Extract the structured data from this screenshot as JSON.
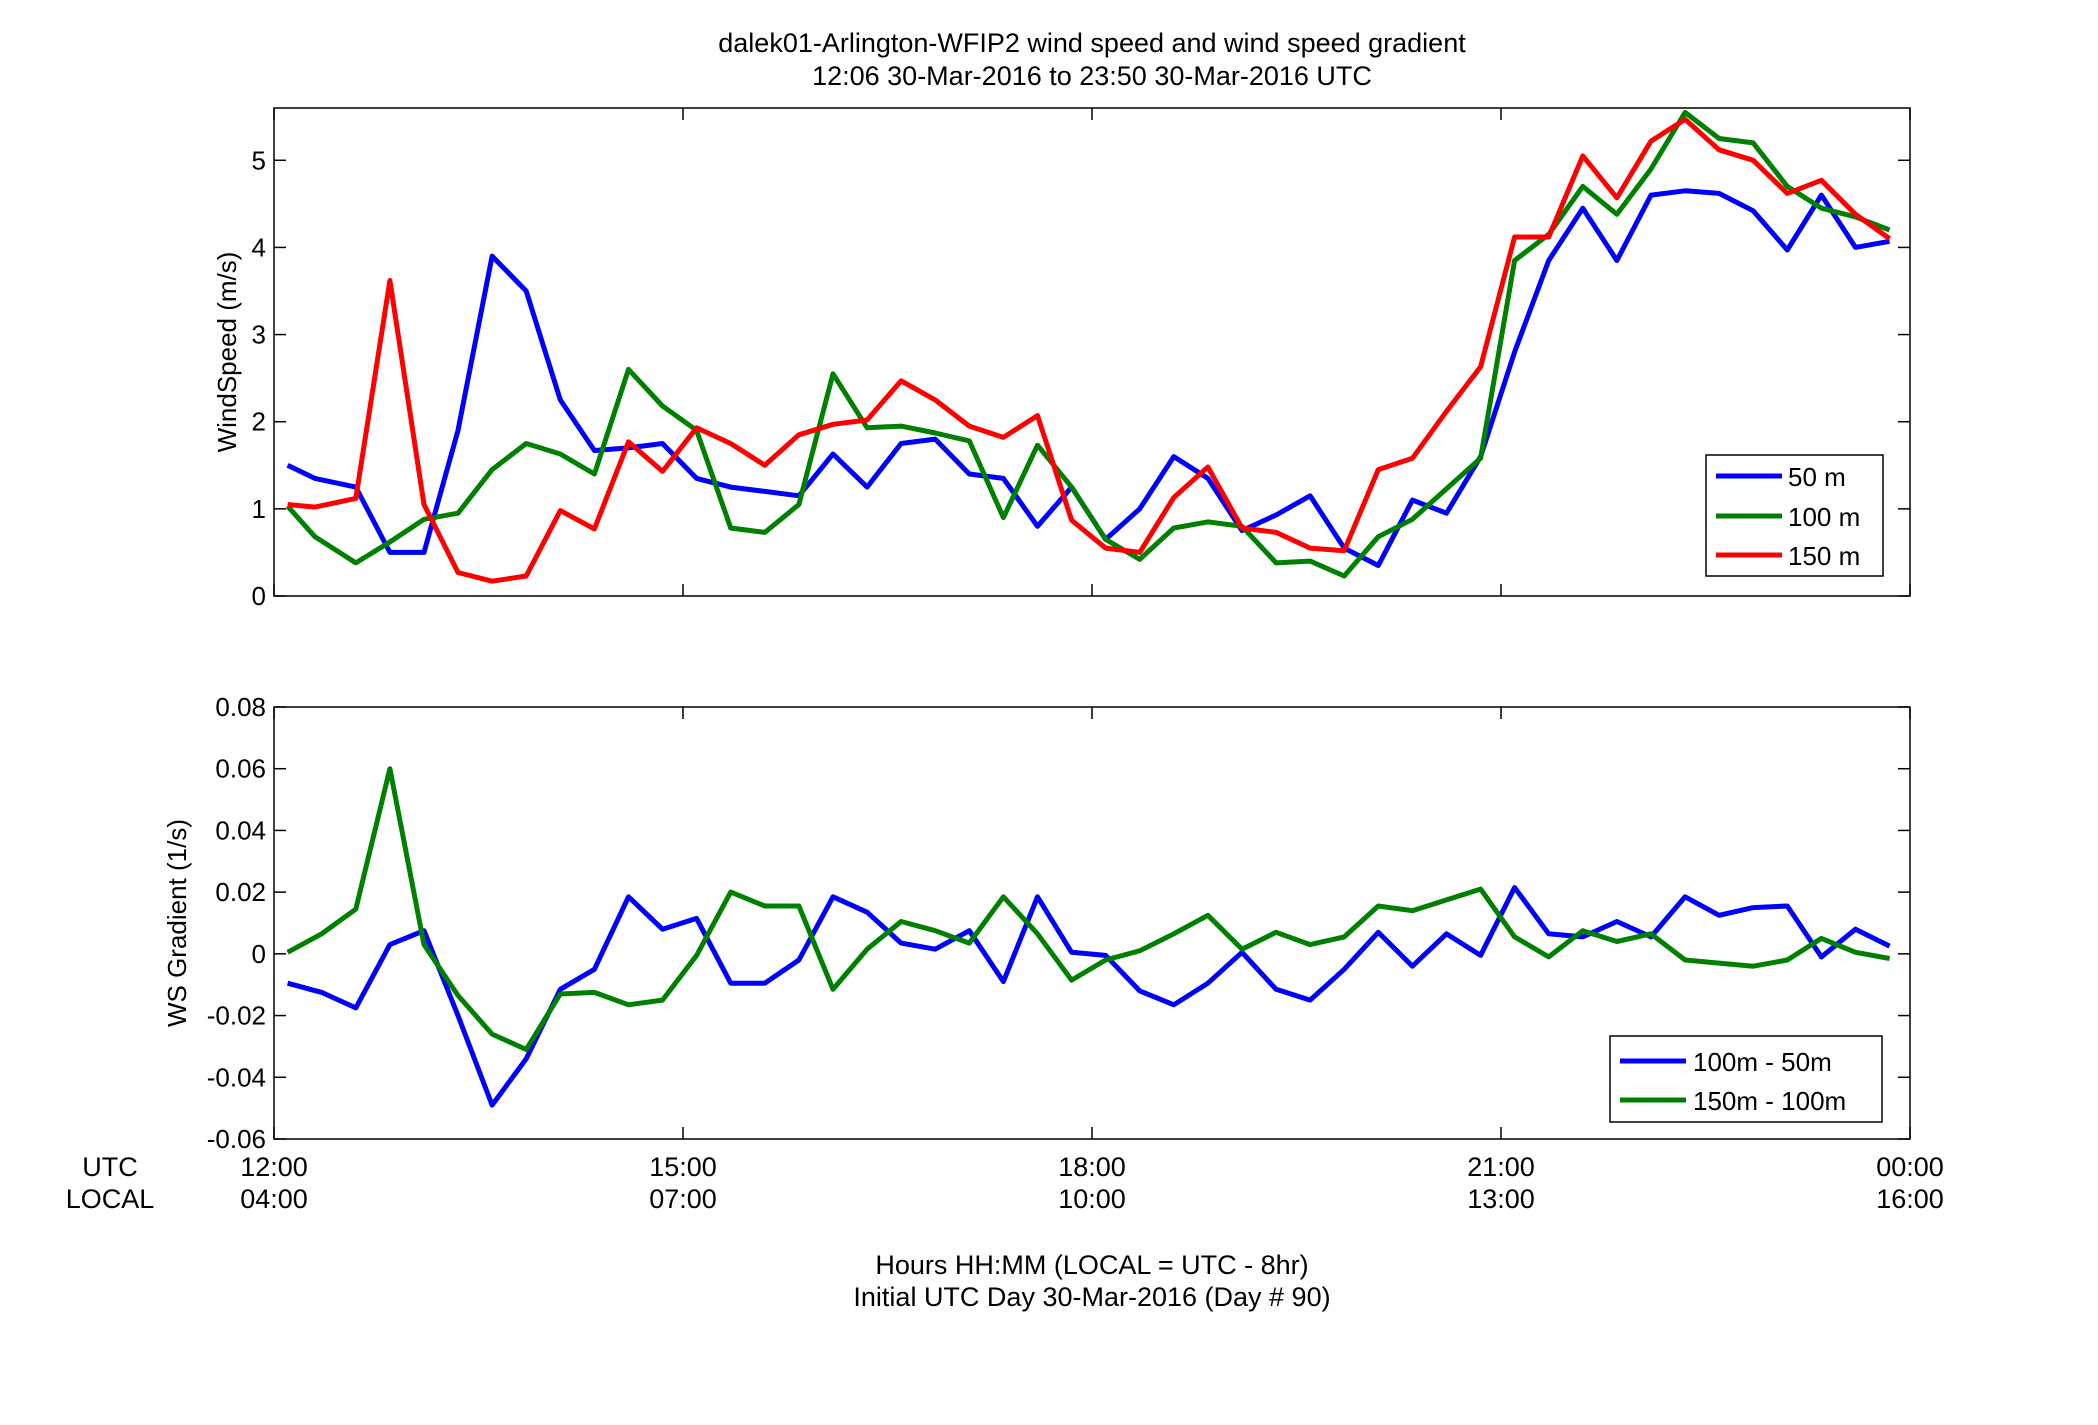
{
  "figure": {
    "title_line1": "dalek01-Arlington-WFIP2  wind speed and wind speed gradient",
    "title_line2": "12:06 30-Mar-2016 to 23:50 30-Mar-2016  UTC",
    "xlabel_line1": "Hours HH:MM  (LOCAL = UTC - 8hr)",
    "xlabel_line2": "Initial UTC Day 30-Mar-2016 (Day # 90)",
    "utc_row_label": "UTC",
    "local_row_label": "LOCAL"
  },
  "chart_data": [
    {
      "type": "line",
      "title": "",
      "ylabel": "WindSpeed (m/s)",
      "xlim": [
        12,
        24
      ],
      "ylim": [
        0,
        5.6
      ],
      "yticks": [
        0,
        1,
        2,
        3,
        4,
        5
      ],
      "ytick_labels": [
        "0",
        "1",
        "2",
        "3",
        "4",
        "5"
      ],
      "xticks": [
        12,
        15,
        18,
        21,
        24
      ],
      "grid": false,
      "legend_position": "lower-right",
      "x": [
        12.1,
        12.3,
        12.6,
        12.85,
        13.1,
        13.35,
        13.6,
        13.85,
        14.1,
        14.35,
        14.6,
        14.85,
        15.1,
        15.35,
        15.6,
        15.85,
        16.1,
        16.35,
        16.6,
        16.85,
        17.1,
        17.35,
        17.6,
        17.85,
        18.1,
        18.35,
        18.6,
        18.85,
        19.1,
        19.35,
        19.6,
        19.85,
        20.1,
        20.35,
        20.6,
        20.85,
        21.1,
        21.35,
        21.6,
        21.85,
        22.1,
        22.35,
        22.6,
        22.85,
        23.1,
        23.35,
        23.6,
        23.85
      ],
      "series": [
        {
          "name": "50 m",
          "color": "#0000ff",
          "values": [
            1.5,
            1.35,
            1.25,
            0.5,
            0.5,
            1.9,
            3.9,
            3.5,
            2.25,
            1.67,
            1.7,
            1.75,
            1.35,
            1.25,
            1.2,
            1.15,
            1.63,
            1.25,
            1.75,
            1.8,
            1.4,
            1.35,
            0.8,
            1.25,
            0.65,
            1.0,
            1.6,
            1.35,
            0.75,
            0.93,
            1.15,
            0.55,
            0.35,
            1.1,
            0.95,
            1.6,
            2.8,
            3.85,
            4.45,
            3.85,
            4.6,
            4.65,
            4.62,
            4.42,
            3.97,
            4.6,
            4.0,
            4.07
          ]
        },
        {
          "name": "100 m",
          "color": "#008000",
          "values": [
            1.03,
            0.68,
            0.38,
            0.62,
            0.88,
            0.95,
            1.45,
            1.75,
            1.63,
            1.4,
            2.6,
            2.18,
            1.9,
            0.78,
            0.73,
            1.05,
            2.55,
            1.93,
            1.95,
            1.87,
            1.78,
            0.9,
            1.73,
            1.25,
            0.65,
            0.42,
            0.78,
            0.85,
            0.8,
            0.38,
            0.4,
            0.23,
            0.68,
            0.88,
            1.23,
            1.58,
            3.85,
            4.15,
            4.7,
            4.38,
            4.9,
            5.55,
            5.25,
            5.2,
            4.7,
            4.45,
            4.35,
            4.2
          ]
        },
        {
          "name": "150 m",
          "color": "#ff0000",
          "values": [
            1.05,
            1.02,
            1.12,
            3.62,
            1.05,
            0.27,
            0.17,
            0.23,
            0.98,
            0.77,
            1.77,
            1.43,
            1.93,
            1.75,
            1.5,
            1.85,
            1.97,
            2.02,
            2.47,
            2.25,
            1.95,
            1.82,
            2.07,
            0.87,
            0.55,
            0.5,
            1.13,
            1.48,
            0.78,
            0.73,
            0.55,
            0.52,
            1.45,
            1.58,
            2.12,
            2.63,
            4.12,
            4.12,
            5.05,
            4.57,
            5.22,
            5.47,
            5.12,
            5.0,
            4.62,
            4.77,
            4.38,
            4.1
          ]
        }
      ]
    },
    {
      "type": "line",
      "title": "",
      "ylabel": "WS Gradient (1/s)",
      "xlim": [
        12,
        24
      ],
      "ylim": [
        -0.06,
        0.08
      ],
      "yticks": [
        -0.06,
        -0.04,
        -0.02,
        0,
        0.02,
        0.04,
        0.06,
        0.08
      ],
      "ytick_labels": [
        "-0.06",
        "-0.04",
        "-0.02",
        "0",
        "0.02",
        "0.04",
        "0.06",
        "0.08"
      ],
      "xticks": [
        12,
        15,
        18,
        21,
        24
      ],
      "xtick_labels_utc": [
        "12:00",
        "15:00",
        "18:00",
        "21:00",
        "00:00"
      ],
      "xtick_labels_local": [
        "04:00",
        "07:00",
        "10:00",
        "13:00",
        "16:00"
      ],
      "grid": false,
      "legend_position": "lower-right",
      "x": [
        12.1,
        12.35,
        12.6,
        12.85,
        13.1,
        13.35,
        13.6,
        13.85,
        14.1,
        14.35,
        14.6,
        14.85,
        15.1,
        15.35,
        15.6,
        15.85,
        16.1,
        16.35,
        16.6,
        16.85,
        17.1,
        17.35,
        17.6,
        17.85,
        18.1,
        18.35,
        18.6,
        18.85,
        19.1,
        19.35,
        19.6,
        19.85,
        20.1,
        20.35,
        20.6,
        20.85,
        21.1,
        21.35,
        21.6,
        21.85,
        22.1,
        22.35,
        22.6,
        22.85,
        23.1,
        23.35,
        23.6,
        23.85
      ],
      "series": [
        {
          "name": "100m - 50m",
          "color": "#0000ff",
          "values": [
            -0.0095,
            -0.0125,
            -0.0175,
            0.003,
            0.0075,
            -0.02,
            -0.049,
            -0.034,
            -0.0115,
            -0.005,
            0.0185,
            0.008,
            0.0115,
            -0.0095,
            -0.0095,
            -0.002,
            0.0185,
            0.0135,
            0.0035,
            0.0015,
            0.0075,
            -0.009,
            0.0185,
            0.0005,
            -0.0005,
            -0.012,
            -0.0165,
            -0.0095,
            0.0005,
            -0.0115,
            -0.015,
            -0.005,
            0.007,
            -0.004,
            0.0065,
            -0.0005,
            0.0215,
            0.0065,
            0.0055,
            0.0105,
            0.0055,
            0.0185,
            0.0125,
            0.015,
            0.0155,
            -0.001,
            0.008,
            0.0025
          ]
        },
        {
          "name": "150m - 100m",
          "color": "#008000",
          "values": [
            0.0005,
            0.0065,
            0.0145,
            0.06,
            0.003,
            -0.0135,
            -0.026,
            -0.031,
            -0.013,
            -0.0125,
            -0.0165,
            -0.015,
            -0.0005,
            0.02,
            0.0155,
            0.0155,
            -0.0115,
            0.0015,
            0.0105,
            0.0075,
            0.0035,
            0.0185,
            0.0065,
            -0.0085,
            -0.002,
            0.001,
            0.0065,
            0.0125,
            0.0015,
            0.007,
            0.003,
            0.0055,
            0.0155,
            0.014,
            0.0175,
            0.021,
            0.0055,
            -0.001,
            0.0075,
            0.004,
            0.0065,
            -0.002,
            -0.003,
            -0.004,
            -0.002,
            0.005,
            0.0005,
            -0.0015
          ]
        }
      ]
    }
  ]
}
